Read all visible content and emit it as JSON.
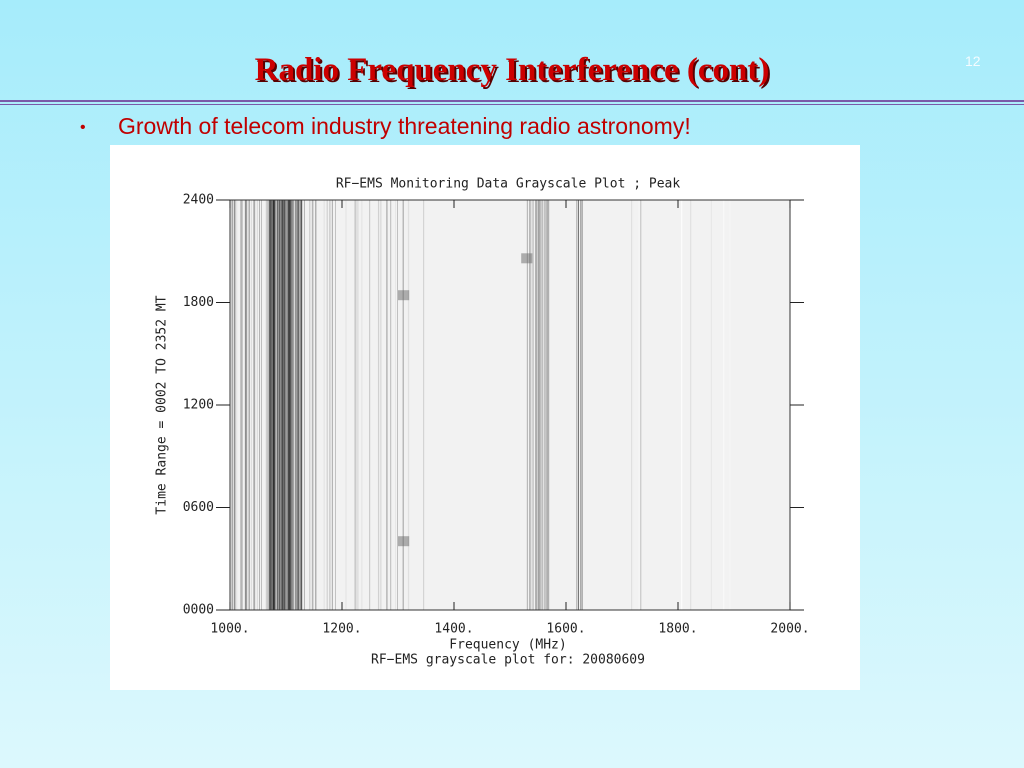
{
  "slide": {
    "title": "Radio Frequency Interference (cont)",
    "page_number": "12",
    "bullets": [
      "Growth of telecom industry threatening radio astronomy!"
    ]
  },
  "figure": {
    "title": "RF−EMS Monitoring Data Grayscale Plot ;  Peak",
    "xlabel": "Frequency (MHz)",
    "ylabel": "Time Range = 0002  TO  2352 MT",
    "caption": "RF−EMS grayscale plot for: 20080609",
    "xlim": [
      1000,
      2000
    ],
    "ylim": [
      0,
      2400
    ],
    "xticks": [
      {
        "value": 1000,
        "label": "1000."
      },
      {
        "value": 1200,
        "label": "1200."
      },
      {
        "value": 1400,
        "label": "1400."
      },
      {
        "value": 1600,
        "label": "1600."
      },
      {
        "value": 1800,
        "label": "1800."
      },
      {
        "value": 2000,
        "label": "2000."
      }
    ],
    "yticks": [
      {
        "value": 0,
        "label": "0000"
      },
      {
        "value": 600,
        "label": "0600"
      },
      {
        "value": 1200,
        "label": "1200"
      },
      {
        "value": 1800,
        "label": "1800"
      },
      {
        "value": 2400,
        "label": "2400"
      }
    ]
  }
}
